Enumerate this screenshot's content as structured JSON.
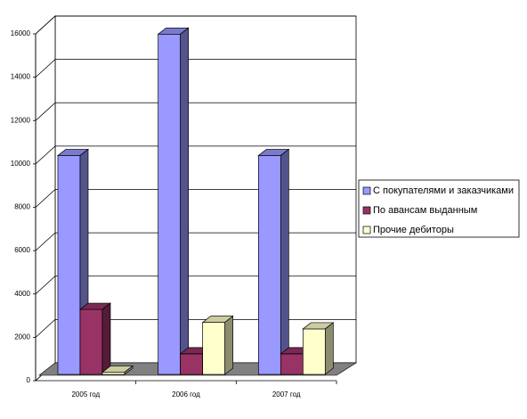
{
  "chart_data": {
    "type": "bar3d",
    "categories": [
      "2005  год",
      "2006 год",
      "2007 год"
    ],
    "series": [
      {
        "name": "С покупателями и заказчиками",
        "color": "#9999ff",
        "values": [
          10100,
          15700,
          10100
        ]
      },
      {
        "name": "По авансам выданным",
        "color": "#993366",
        "values": [
          3000,
          950,
          950
        ]
      },
      {
        "name": "Прочие дебиторы",
        "color": "#ffffcc",
        "values": [
          100,
          2400,
          2100
        ]
      }
    ],
    "ylim": [
      0,
      16000
    ],
    "yticks": [
      0,
      2000,
      4000,
      6000,
      8000,
      10000,
      12000,
      14000,
      16000
    ],
    "grid": true,
    "legend": "right"
  }
}
